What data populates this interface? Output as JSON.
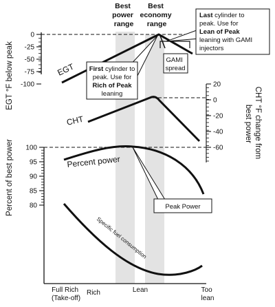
{
  "header": {
    "best_power_range": [
      "Best",
      "power",
      "range"
    ],
    "best_economy_range": [
      "Best",
      "economy",
      "range"
    ]
  },
  "egt": {
    "axis_title": "EGT °F below peak",
    "ticks": [
      "0",
      "-25",
      "-50",
      "-75",
      "-100"
    ],
    "curve_label": "EGT"
  },
  "cht": {
    "axis_title": [
      "CHT °F change from",
      "best power"
    ],
    "ticks": [
      "20",
      "0",
      "-20",
      "-40",
      "-60"
    ],
    "curve_label": "CHT"
  },
  "power": {
    "axis_title": "Percent of best power",
    "ticks": [
      "100",
      "95",
      "90",
      "85",
      "80"
    ],
    "curve_label": "Percent power"
  },
  "sfc": {
    "curve_label": "Specific fuel consumption"
  },
  "callouts": {
    "first_cylinder": {
      "lines": [
        [
          {
            "t": "First",
            "b": true
          },
          {
            "t": " cylinder to",
            "b": false
          }
        ],
        [
          {
            "t": "peak. Use for",
            "b": false
          }
        ],
        [
          {
            "t": "Rich of Peak",
            "b": true
          }
        ],
        [
          {
            "t": "leaning",
            "b": false
          }
        ]
      ]
    },
    "last_cylinder": {
      "lines": [
        [
          {
            "t": "Last",
            "b": true
          },
          {
            "t": " cylinder to",
            "b": false
          }
        ],
        [
          {
            "t": "peak. Use for",
            "b": false
          }
        ],
        [
          {
            "t": "Lean of Peak",
            "b": true
          }
        ],
        [
          {
            "t": "leaning with GAMI",
            "b": false
          }
        ],
        [
          {
            "t": "injectors",
            "b": false
          }
        ]
      ]
    },
    "gami_spread": [
      "GAMI",
      "spread"
    ],
    "peak_power": "Peak Power"
  },
  "x_axis": {
    "full_rich": [
      "Full Rich",
      "(Take-off)"
    ],
    "rich": "Rich",
    "lean": "Lean",
    "too_lean": [
      "Too",
      "lean"
    ]
  },
  "colors": {
    "band": "#e3e3e3",
    "ink": "#111111"
  }
}
